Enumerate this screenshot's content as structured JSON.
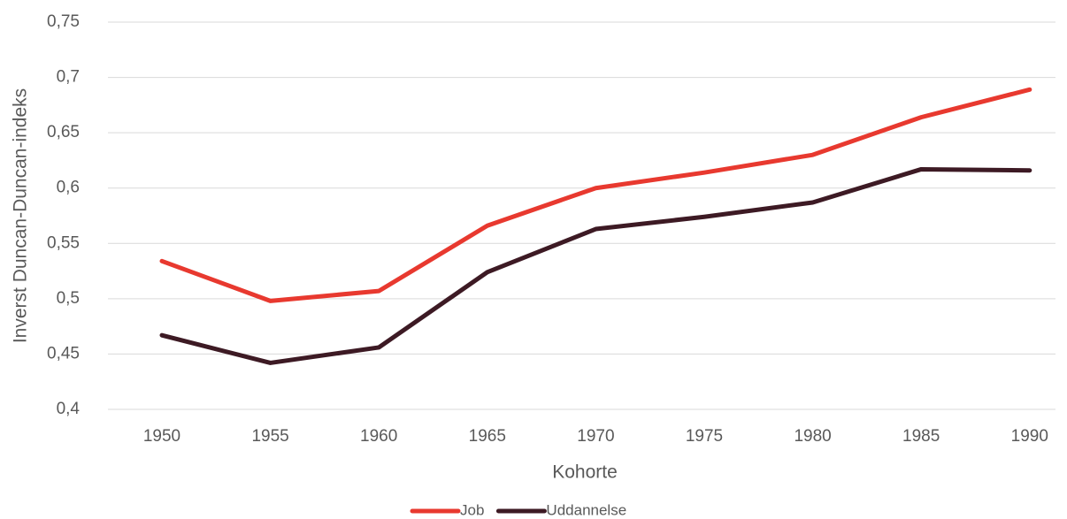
{
  "chart_data": {
    "type": "line",
    "categories": [
      "1950",
      "1955",
      "1960",
      "1965",
      "1970",
      "1975",
      "1980",
      "1985",
      "1990"
    ],
    "series": [
      {
        "name": "Job",
        "color": "#e8392f",
        "values": [
          0.534,
          0.498,
          0.507,
          0.566,
          0.6,
          0.614,
          0.63,
          0.664,
          0.689
        ]
      },
      {
        "name": "Uddannelse",
        "color": "#3d1a24",
        "values": [
          0.467,
          0.442,
          0.456,
          0.524,
          0.563,
          0.574,
          0.587,
          0.617,
          0.616
        ]
      }
    ],
    "x_label": "Kohorte",
    "y_label": "Inverst Duncan-Duncan-indeks",
    "ylim": [
      0.4,
      0.75
    ],
    "yticks": [
      {
        "value": 0.4,
        "label": "0,4"
      },
      {
        "value": 0.45,
        "label": "0,45"
      },
      {
        "value": 0.5,
        "label": "0,5"
      },
      {
        "value": 0.55,
        "label": "0,55"
      },
      {
        "value": 0.6,
        "label": "0,6"
      },
      {
        "value": 0.65,
        "label": "0,65"
      },
      {
        "value": 0.7,
        "label": "0,7"
      },
      {
        "value": 0.75,
        "label": "0,75"
      }
    ],
    "grid": true,
    "legend": "bottom"
  }
}
